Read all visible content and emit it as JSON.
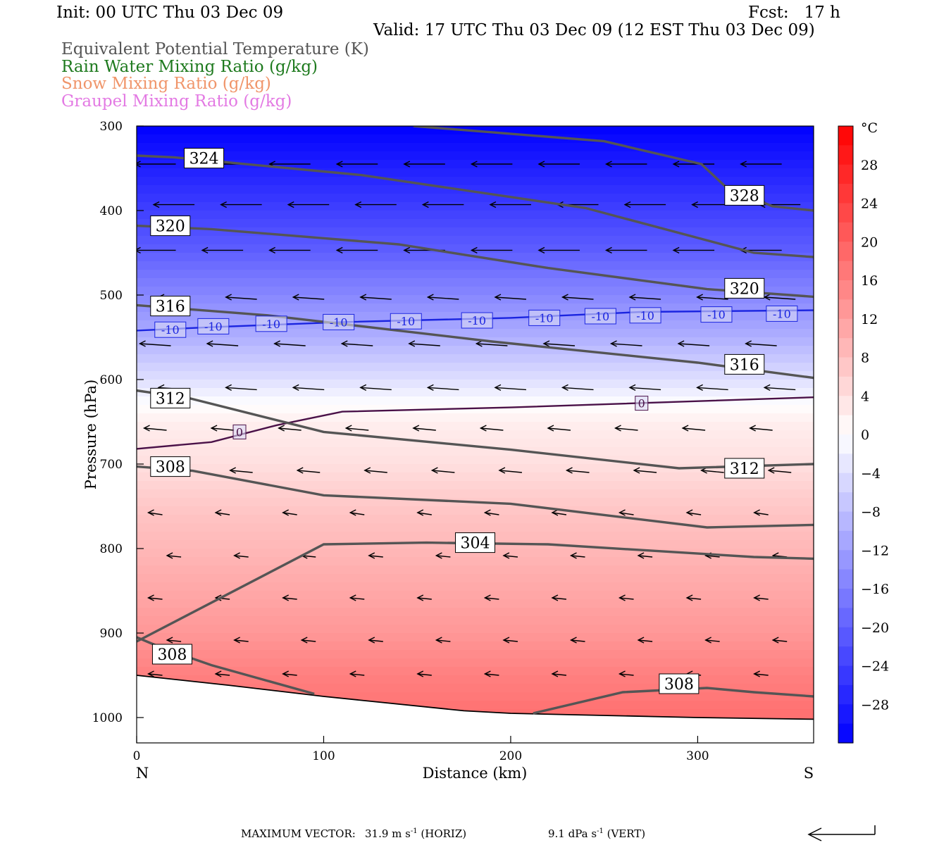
{
  "header": {
    "init": "Init: 00 UTC Thu 03 Dec 09",
    "fcst": "Fcst:   17 h",
    "valid": "Valid: 17 UTC Thu 03 Dec 09 (12 EST Thu 03 Dec 09)"
  },
  "legend": {
    "theta_e": "Equivalent Potential Temperature (K)",
    "rain": "Rain Water Mixing Ratio (g/kg)",
    "snow": "Snow Mixing Ratio (g/kg)",
    "graupel": "Graupel Mixing Ratio (g/kg)"
  },
  "colors": {
    "theta_e": "#555555",
    "rain": "#1e7a1e",
    "snow": "#f0956a",
    "graupel": "#e37ae3",
    "isotherm_minus10": "#1a24e0",
    "isotherm_0": "#4a1148"
  },
  "footer": {
    "max_vector_label": "MAXIMUM VECTOR:",
    "horiz_value": "31.9 m s",
    "horiz_exp": "-1",
    "horiz_unit": "(HORIZ)",
    "vert_value": "9.1 dPa s",
    "vert_exp": "-1",
    "vert_unit": "(VERT)"
  },
  "chart_data": {
    "type": "cross-section",
    "xlabel": "Distance (km)",
    "ylabel": "Pressure (hPa)",
    "xlim": [
      0,
      362
    ],
    "ylim": [
      1030,
      300
    ],
    "x_ticks": [
      0,
      100,
      200,
      300
    ],
    "y_ticks": [
      300,
      400,
      500,
      600,
      700,
      800,
      900,
      1000
    ],
    "x_end_labels": {
      "left": "N",
      "right": "S"
    },
    "colorbar": {
      "unit": "°C",
      "range": [
        -32,
        32
      ],
      "tick_labels": [
        28,
        24,
        20,
        16,
        12,
        8,
        4,
        0,
        -4,
        -8,
        -12,
        -16,
        -20,
        -24,
        -28
      ]
    },
    "temperature_field": {
      "levels_hpa": [
        300,
        350,
        400,
        450,
        500,
        550,
        600,
        630,
        650,
        700,
        750,
        800,
        850,
        900,
        950,
        1000
      ],
      "values_c": [
        -32,
        -28,
        -24,
        -20,
        -15,
        -10,
        -4,
        0,
        2,
        4,
        7,
        9,
        11,
        13,
        16,
        18
      ]
    },
    "theta_e_contours": [
      {
        "value": 328,
        "points": [
          [
            148,
            300
          ],
          [
            250,
            318
          ],
          [
            302,
            345
          ],
          [
            315,
            372
          ],
          [
            340,
            395
          ],
          [
            362,
            400
          ]
        ],
        "labels": [
          [
            325,
            382
          ]
        ]
      },
      {
        "value": 324,
        "points": [
          [
            0,
            335
          ],
          [
            20,
            337
          ],
          [
            120,
            358
          ],
          [
            240,
            397
          ],
          [
            330,
            450
          ],
          [
            362,
            455
          ]
        ],
        "labels": [
          [
            36,
            338
          ]
        ]
      },
      {
        "value": 320,
        "points": [
          [
            0,
            418
          ],
          [
            40,
            422
          ],
          [
            140,
            440
          ],
          [
            220,
            468
          ],
          [
            305,
            493
          ],
          [
            362,
            502
          ]
        ],
        "labels": [
          [
            18,
            418
          ],
          [
            325,
            492
          ]
        ]
      },
      {
        "value": 316,
        "points": [
          [
            0,
            512
          ],
          [
            70,
            524
          ],
          [
            190,
            555
          ],
          [
            300,
            580
          ],
          [
            362,
            598
          ]
        ],
        "labels": [
          [
            18,
            513
          ],
          [
            325,
            582
          ]
        ]
      },
      {
        "value": 312,
        "points": [
          [
            0,
            613
          ],
          [
            28,
            622
          ],
          [
            100,
            662
          ],
          [
            200,
            683
          ],
          [
            290,
            705
          ],
          [
            362,
            700
          ]
        ],
        "labels": [
          [
            18,
            622
          ],
          [
            325,
            705
          ]
        ]
      },
      {
        "value": 308,
        "points": [
          [
            0,
            703
          ],
          [
            30,
            708
          ],
          [
            100,
            737
          ],
          [
            200,
            747
          ],
          [
            305,
            775
          ],
          [
            362,
            772
          ]
        ],
        "labels": [
          [
            18,
            703
          ]
        ]
      },
      {
        "value": 304,
        "points": [
          [
            0,
            910
          ],
          [
            100,
            795
          ],
          [
            155,
            793
          ],
          [
            220,
            795
          ],
          [
            330,
            810
          ],
          [
            362,
            812
          ]
        ],
        "labels": [
          [
            181,
            793
          ]
        ]
      },
      {
        "value": 308,
        "points": [
          [
            0,
            905
          ],
          [
            14,
            918
          ],
          [
            40,
            938
          ],
          [
            95,
            972
          ]
        ],
        "labels": [
          [
            19,
            925
          ]
        ]
      },
      {
        "value": 308,
        "points": [
          [
            212,
            995
          ],
          [
            260,
            970
          ],
          [
            305,
            965
          ],
          [
            330,
            970
          ],
          [
            362,
            975
          ]
        ],
        "labels": [
          [
            290,
            960
          ]
        ]
      }
    ],
    "isotherms": [
      {
        "value": -10,
        "points": [
          [
            0,
            542
          ],
          [
            40,
            538
          ],
          [
            110,
            532
          ],
          [
            200,
            527
          ],
          [
            270,
            520
          ],
          [
            362,
            518
          ]
        ],
        "labels": [
          [
            18,
            541
          ],
          [
            41,
            537
          ],
          [
            72,
            534
          ],
          [
            108,
            532
          ],
          [
            144,
            531
          ],
          [
            182,
            530
          ],
          [
            218,
            527
          ],
          [
            248,
            525
          ],
          [
            272,
            524
          ],
          [
            310,
            523
          ],
          [
            345,
            522
          ]
        ]
      },
      {
        "value": 0,
        "points": [
          [
            0,
            682
          ],
          [
            40,
            674
          ],
          [
            75,
            654
          ],
          [
            110,
            638
          ],
          [
            200,
            633
          ],
          [
            362,
            621
          ]
        ],
        "labels": [
          [
            55,
            662
          ],
          [
            270,
            628
          ]
        ]
      }
    ],
    "wind_vectors": {
      "note": "arrows point northward (toward N); horizontal component dominant",
      "rows_hpa": [
        345,
        393,
        447,
        505,
        560,
        612,
        660,
        710,
        760,
        810,
        860,
        910,
        950
      ],
      "max_horiz_ms": 31.9,
      "max_vert_dpas": 9.1
    },
    "terrain_hpa": [
      [
        0,
        950
      ],
      [
        50,
        962
      ],
      [
        100,
        975
      ],
      [
        175,
        992
      ],
      [
        200,
        995
      ],
      [
        300,
        1000
      ],
      [
        362,
        1002
      ]
    ]
  }
}
